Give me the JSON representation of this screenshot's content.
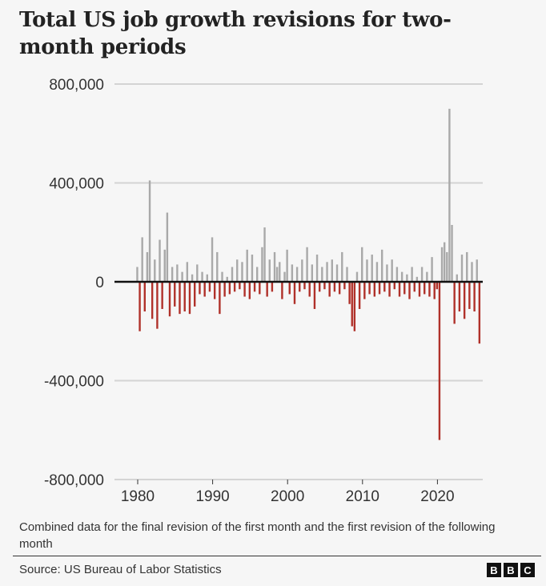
{
  "chart_data": {
    "type": "bar",
    "title": "Total US job growth revisions for two-month periods",
    "xlabel": "",
    "ylabel": "",
    "x_start": 1979.92,
    "x_step": 0.3333,
    "values_thousands": [
      60,
      -200,
      180,
      -120,
      120,
      410,
      -150,
      90,
      -190,
      170,
      -110,
      130,
      280,
      -140,
      60,
      -100,
      70,
      -130,
      40,
      -120,
      80,
      -130,
      30,
      -100,
      70,
      -50,
      40,
      -60,
      30,
      -40,
      180,
      -70,
      120,
      -130,
      40,
      -60,
      20,
      -50,
      60,
      -40,
      90,
      -30,
      80,
      -60,
      130,
      -70,
      110,
      -40,
      60,
      -50,
      140,
      220,
      -60,
      90,
      -40,
      120,
      60,
      80,
      -70,
      40,
      130,
      -50,
      70,
      -90,
      60,
      -40,
      90,
      -30,
      140,
      -60,
      70,
      -110,
      110,
      -40,
      60,
      -30,
      80,
      -60,
      90,
      -40,
      70,
      -50,
      120,
      -30,
      60,
      -90,
      -180,
      -200,
      40,
      -110,
      140,
      -70,
      90,
      -50,
      110,
      -60,
      80,
      -50,
      130,
      -40,
      70,
      -60,
      90,
      -30,
      60,
      -60,
      40,
      -50,
      30,
      -70,
      60,
      -40,
      20,
      -60,
      60,
      -50,
      40,
      -60,
      100,
      -70,
      -30,
      -640,
      140,
      160,
      120,
      700,
      230,
      -170,
      30,
      -120,
      110,
      -150,
      120,
      -110,
      80,
      -120,
      90,
      -250
    ],
    "ylim": [
      -800000,
      800000
    ],
    "xlim": [
      1977.3,
      2026.3
    ],
    "yticks": [
      800000,
      400000,
      0,
      -400000,
      -800000
    ],
    "ytick_labels": [
      "800,000",
      "400,000",
      "0",
      "-400,000",
      "-800,000"
    ],
    "xticks": [
      1980,
      1990,
      2000,
      2010,
      2020
    ],
    "xtick_labels": [
      "1980",
      "1990",
      "2000",
      "2010",
      "2020"
    ],
    "grid": true,
    "colors": {
      "positive": "#a9a9a9",
      "negative": "#b0312a",
      "grid": "#d4d4d4",
      "zero": "#111111"
    }
  },
  "note": "Combined data for the final revision of the first month and the first revision of the following month",
  "source": "Source: US Bureau of Labor Statistics",
  "logo": [
    "B",
    "B",
    "C"
  ]
}
